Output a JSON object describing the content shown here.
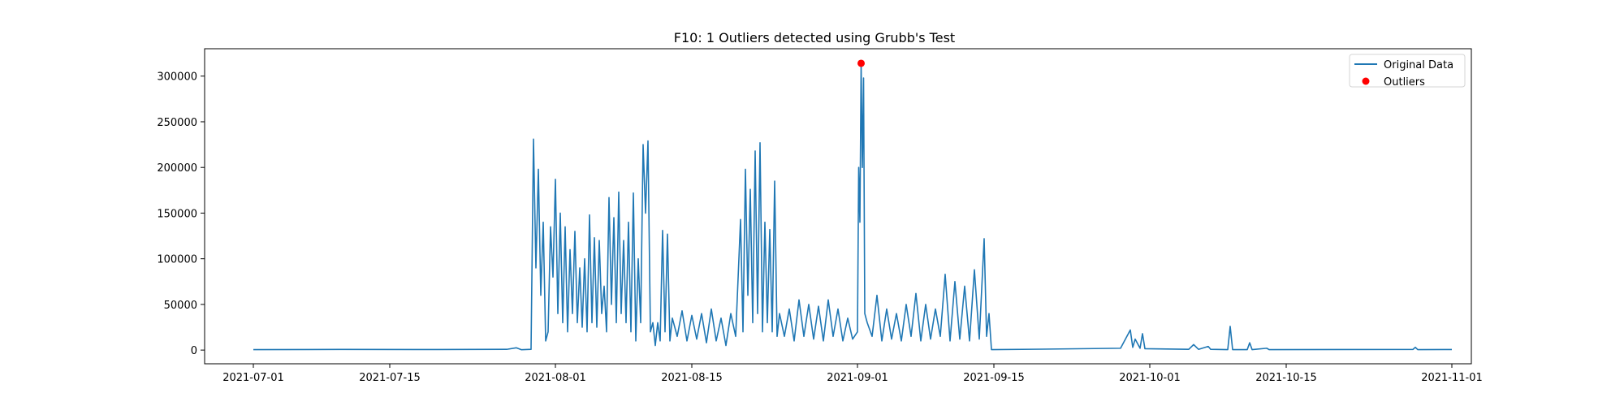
{
  "chart_data": {
    "type": "line",
    "title": "F10: 1 Outliers detected using Grubb's Test",
    "xlabel": "",
    "ylabel": "",
    "x_range": [
      "2021-06-26",
      "2021-11-03"
    ],
    "ylim": [
      -15000,
      330000
    ],
    "grid": false,
    "legend_position": "top-right",
    "x_ticks": [
      "2021-07-01",
      "2021-07-15",
      "2021-08-01",
      "2021-08-15",
      "2021-09-01",
      "2021-09-15",
      "2021-10-01",
      "2021-10-15",
      "2021-11-01"
    ],
    "y_ticks": [
      0,
      50000,
      100000,
      150000,
      200000,
      250000,
      300000
    ],
    "series": [
      {
        "name": "Original Data",
        "color": "#1f77b4",
        "kind": "line",
        "points": [
          [
            "2021-07-01",
            500
          ],
          [
            "2021-07-10",
            700
          ],
          [
            "2021-07-20",
            600
          ],
          [
            "2021-07-27",
            800
          ],
          [
            "2021-07-28",
            2500
          ],
          [
            "2021-07-28T12:00",
            400
          ],
          [
            "2021-07-29T12:00",
            800
          ],
          [
            "2021-07-29T18:00",
            231000
          ],
          [
            "2021-07-30",
            90000
          ],
          [
            "2021-07-30T06:00",
            198000
          ],
          [
            "2021-07-30T12:00",
            60000
          ],
          [
            "2021-07-30T18:00",
            140000
          ],
          [
            "2021-07-31",
            10000
          ],
          [
            "2021-07-31T06:00",
            20000
          ],
          [
            "2021-07-31T12:00",
            135000
          ],
          [
            "2021-07-31T18:00",
            80000
          ],
          [
            "2021-08-01",
            187000
          ],
          [
            "2021-08-01T06:00",
            40000
          ],
          [
            "2021-08-01T12:00",
            150000
          ],
          [
            "2021-08-01T18:00",
            30000
          ],
          [
            "2021-08-02",
            135000
          ],
          [
            "2021-08-02T06:00",
            20000
          ],
          [
            "2021-08-02T12:00",
            110000
          ],
          [
            "2021-08-02T18:00",
            40000
          ],
          [
            "2021-08-03",
            130000
          ],
          [
            "2021-08-03T06:00",
            30000
          ],
          [
            "2021-08-03T12:00",
            90000
          ],
          [
            "2021-08-03T18:00",
            25000
          ],
          [
            "2021-08-04",
            100000
          ],
          [
            "2021-08-04T06:00",
            20000
          ],
          [
            "2021-08-04T12:00",
            148000
          ],
          [
            "2021-08-04T18:00",
            30000
          ],
          [
            "2021-08-05",
            123000
          ],
          [
            "2021-08-05T06:00",
            25000
          ],
          [
            "2021-08-05T12:00",
            120000
          ],
          [
            "2021-08-05T18:00",
            40000
          ],
          [
            "2021-08-06",
            70000
          ],
          [
            "2021-08-06T06:00",
            20000
          ],
          [
            "2021-08-06T12:00",
            167000
          ],
          [
            "2021-08-06T18:00",
            50000
          ],
          [
            "2021-08-07",
            145000
          ],
          [
            "2021-08-07T06:00",
            30000
          ],
          [
            "2021-08-07T12:00",
            173000
          ],
          [
            "2021-08-07T18:00",
            40000
          ],
          [
            "2021-08-08",
            120000
          ],
          [
            "2021-08-08T06:00",
            30000
          ],
          [
            "2021-08-08T12:00",
            140000
          ],
          [
            "2021-08-08T18:00",
            20000
          ],
          [
            "2021-08-09",
            172000
          ],
          [
            "2021-08-09T06:00",
            10000
          ],
          [
            "2021-08-09T12:00",
            100000
          ],
          [
            "2021-08-09T18:00",
            30000
          ],
          [
            "2021-08-10",
            225000
          ],
          [
            "2021-08-10T06:00",
            150000
          ],
          [
            "2021-08-10T12:00",
            229000
          ],
          [
            "2021-08-10T18:00",
            20000
          ],
          [
            "2021-08-11",
            30000
          ],
          [
            "2021-08-11T06:00",
            5000
          ],
          [
            "2021-08-11T12:00",
            30000
          ],
          [
            "2021-08-11T18:00",
            10000
          ],
          [
            "2021-08-12",
            131000
          ],
          [
            "2021-08-12T06:00",
            20000
          ],
          [
            "2021-08-12T12:00",
            127000
          ],
          [
            "2021-08-12T18:00",
            10000
          ],
          [
            "2021-08-13",
            35000
          ],
          [
            "2021-08-13T12:00",
            15000
          ],
          [
            "2021-08-14",
            43000
          ],
          [
            "2021-08-14T12:00",
            10000
          ],
          [
            "2021-08-15",
            38000
          ],
          [
            "2021-08-15T12:00",
            12000
          ],
          [
            "2021-08-16",
            40000
          ],
          [
            "2021-08-16T12:00",
            8000
          ],
          [
            "2021-08-17",
            45000
          ],
          [
            "2021-08-17T12:00",
            10000
          ],
          [
            "2021-08-18",
            35000
          ],
          [
            "2021-08-18T12:00",
            5000
          ],
          [
            "2021-08-19",
            40000
          ],
          [
            "2021-08-19T12:00",
            15000
          ],
          [
            "2021-08-20",
            143000
          ],
          [
            "2021-08-20T06:00",
            20000
          ],
          [
            "2021-08-20T12:00",
            198000
          ],
          [
            "2021-08-20T18:00",
            60000
          ],
          [
            "2021-08-21",
            176000
          ],
          [
            "2021-08-21T06:00",
            30000
          ],
          [
            "2021-08-21T12:00",
            218000
          ],
          [
            "2021-08-21T18:00",
            40000
          ],
          [
            "2021-08-22",
            227000
          ],
          [
            "2021-08-22T06:00",
            20000
          ],
          [
            "2021-08-22T12:00",
            140000
          ],
          [
            "2021-08-22T18:00",
            30000
          ],
          [
            "2021-08-23",
            132000
          ],
          [
            "2021-08-23T06:00",
            20000
          ],
          [
            "2021-08-23T12:00",
            185000
          ],
          [
            "2021-08-23T18:00",
            15000
          ],
          [
            "2021-08-24",
            40000
          ],
          [
            "2021-08-24T12:00",
            15000
          ],
          [
            "2021-08-25",
            45000
          ],
          [
            "2021-08-25T12:00",
            10000
          ],
          [
            "2021-08-26",
            55000
          ],
          [
            "2021-08-26T12:00",
            15000
          ],
          [
            "2021-08-27",
            50000
          ],
          [
            "2021-08-27T12:00",
            12000
          ],
          [
            "2021-08-28",
            48000
          ],
          [
            "2021-08-28T12:00",
            10000
          ],
          [
            "2021-08-29",
            55000
          ],
          [
            "2021-08-29T12:00",
            15000
          ],
          [
            "2021-08-30",
            45000
          ],
          [
            "2021-08-30T12:00",
            10000
          ],
          [
            "2021-08-31",
            35000
          ],
          [
            "2021-08-31T12:00",
            12000
          ],
          [
            "2021-09-01",
            20000
          ],
          [
            "2021-09-01T03:00",
            200000
          ],
          [
            "2021-09-01T06:00",
            140000
          ],
          [
            "2021-09-01T09:00",
            314000
          ],
          [
            "2021-09-01T12:00",
            200000
          ],
          [
            "2021-09-01T15:00",
            298000
          ],
          [
            "2021-09-01T18:00",
            40000
          ],
          [
            "2021-09-02",
            30000
          ],
          [
            "2021-09-02T12:00",
            15000
          ],
          [
            "2021-09-03",
            60000
          ],
          [
            "2021-09-03T12:00",
            10000
          ],
          [
            "2021-09-04",
            45000
          ],
          [
            "2021-09-04T12:00",
            12000
          ],
          [
            "2021-09-05",
            40000
          ],
          [
            "2021-09-05T12:00",
            10000
          ],
          [
            "2021-09-06",
            50000
          ],
          [
            "2021-09-06T12:00",
            15000
          ],
          [
            "2021-09-07",
            62000
          ],
          [
            "2021-09-07T12:00",
            10000
          ],
          [
            "2021-09-08",
            50000
          ],
          [
            "2021-09-08T12:00",
            12000
          ],
          [
            "2021-09-09",
            45000
          ],
          [
            "2021-09-09T12:00",
            15000
          ],
          [
            "2021-09-10",
            83000
          ],
          [
            "2021-09-10T12:00",
            10000
          ],
          [
            "2021-09-11",
            75000
          ],
          [
            "2021-09-11T12:00",
            12000
          ],
          [
            "2021-09-12",
            70000
          ],
          [
            "2021-09-12T12:00",
            10000
          ],
          [
            "2021-09-13",
            88000
          ],
          [
            "2021-09-13T12:00",
            12000
          ],
          [
            "2021-09-14",
            122000
          ],
          [
            "2021-09-14T06:00",
            15000
          ],
          [
            "2021-09-14T12:00",
            40000
          ],
          [
            "2021-09-14T18:00",
            500
          ],
          [
            "2021-09-20",
            1000
          ],
          [
            "2021-09-28",
            2000
          ],
          [
            "2021-09-29",
            22000
          ],
          [
            "2021-09-29T06:00",
            3000
          ],
          [
            "2021-09-29T12:00",
            12000
          ],
          [
            "2021-09-30",
            2000
          ],
          [
            "2021-09-30T06:00",
            18000
          ],
          [
            "2021-09-30T12:00",
            1500
          ],
          [
            "2021-10-05",
            800
          ],
          [
            "2021-10-05T12:00",
            6000
          ],
          [
            "2021-10-06",
            800
          ],
          [
            "2021-10-07",
            4000
          ],
          [
            "2021-10-07T06:00",
            800
          ],
          [
            "2021-10-09",
            500
          ],
          [
            "2021-10-09T06:00",
            26000
          ],
          [
            "2021-10-09T12:00",
            500
          ],
          [
            "2021-10-11",
            500
          ],
          [
            "2021-10-11T06:00",
            8000
          ],
          [
            "2021-10-11T12:00",
            500
          ],
          [
            "2021-10-13",
            2000
          ],
          [
            "2021-10-13T06:00",
            500
          ],
          [
            "2021-10-28",
            700
          ],
          [
            "2021-10-28T06:00",
            3000
          ],
          [
            "2021-10-28T12:00",
            500
          ],
          [
            "2021-11-01",
            600
          ]
        ]
      },
      {
        "name": "Outliers",
        "color": "#ff0000",
        "kind": "scatter",
        "points": [
          [
            "2021-09-01T09:00",
            314000
          ]
        ]
      }
    ]
  }
}
